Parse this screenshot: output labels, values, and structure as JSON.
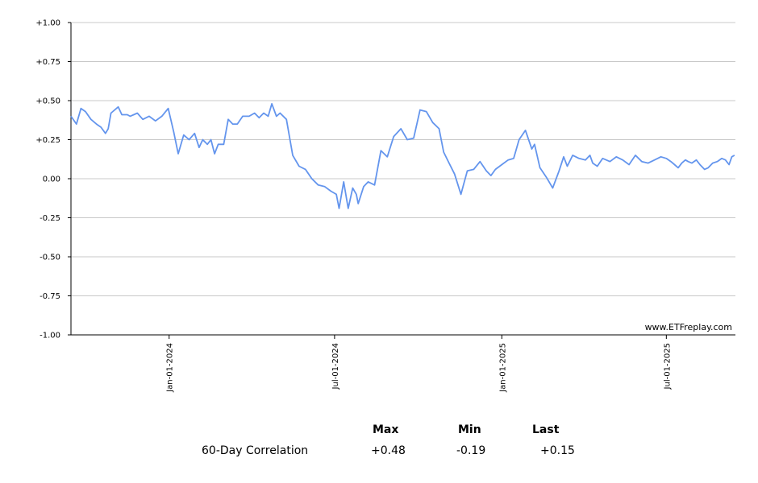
{
  "chart_data": {
    "type": "line",
    "ylim": [
      -1.0,
      1.0
    ],
    "y_ticks": [
      "+1.00",
      "+0.75",
      "+0.50",
      "+0.25",
      "0.00",
      "-0.25",
      "-0.50",
      "-0.75",
      "-1.00"
    ],
    "y_tick_values": [
      1.0,
      0.75,
      0.5,
      0.25,
      0.0,
      -0.25,
      -0.5,
      -0.75,
      -1.0
    ],
    "x_range": [
      "2023-09-15",
      "2025-09-15"
    ],
    "x_ticks": [
      "Jan-01-2024",
      "Jul-01-2024",
      "Jan-01-2025",
      "Jul-01-2025"
    ],
    "x_tick_dates": [
      "2024-01-01",
      "2024-07-01",
      "2025-01-01",
      "2025-07-01"
    ],
    "grid": "horizontal",
    "line_color": "#6495ED",
    "watermark": "www.ETFreplay.com",
    "series": [
      {
        "x": [
          "2023-09-15",
          "2023-09-21",
          "2023-09-26",
          "2023-10-01",
          "2023-10-07",
          "2023-10-13",
          "2023-10-18",
          "2023-10-23",
          "2023-10-26",
          "2023-10-29",
          "2023-11-06",
          "2023-11-10",
          "2023-11-16",
          "2023-11-19",
          "2023-11-23",
          "2023-11-27",
          "2023-12-03",
          "2023-12-10",
          "2023-12-17",
          "2023-12-24",
          "2023-12-31",
          "2024-01-06",
          "2024-01-11",
          "2024-01-17",
          "2024-01-23",
          "2024-01-29",
          "2024-02-03",
          "2024-02-07",
          "2024-02-12",
          "2024-02-16",
          "2024-02-20",
          "2024-02-24",
          "2024-03-01",
          "2024-03-06",
          "2024-03-11",
          "2024-03-16",
          "2024-03-22",
          "2024-03-29",
          "2024-04-04",
          "2024-04-09",
          "2024-04-14",
          "2024-04-19",
          "2024-04-23",
          "2024-04-28",
          "2024-05-02",
          "2024-05-09",
          "2024-05-16",
          "2024-05-23",
          "2024-05-30",
          "2024-06-06",
          "2024-06-13",
          "2024-06-20",
          "2024-06-27",
          "2024-07-03",
          "2024-07-06",
          "2024-07-11",
          "2024-07-16",
          "2024-07-21",
          "2024-07-25",
          "2024-07-27",
          "2024-08-02",
          "2024-08-07",
          "2024-08-14",
          "2024-08-21",
          "2024-08-28",
          "2024-09-04",
          "2024-09-12",
          "2024-09-19",
          "2024-09-26",
          "2024-10-03",
          "2024-10-10",
          "2024-10-17",
          "2024-10-24",
          "2024-10-29",
          "2024-11-04",
          "2024-11-10",
          "2024-11-17",
          "2024-11-24",
          "2024-12-01",
          "2024-12-08",
          "2024-12-15",
          "2024-12-20",
          "2024-12-25",
          "2025-01-01",
          "2025-01-08",
          "2025-01-14",
          "2025-01-20",
          "2025-01-27",
          "2025-02-03",
          "2025-02-06",
          "2025-02-12",
          "2025-02-19",
          "2025-02-26",
          "2025-03-05",
          "2025-03-10",
          "2025-03-14",
          "2025-03-20",
          "2025-03-27",
          "2025-04-03",
          "2025-04-08",
          "2025-04-11",
          "2025-04-16",
          "2025-04-22",
          "2025-04-30",
          "2025-05-07",
          "2025-05-14",
          "2025-05-21",
          "2025-05-28",
          "2025-06-04",
          "2025-06-11",
          "2025-06-18",
          "2025-06-25",
          "2025-07-01",
          "2025-07-06",
          "2025-07-10",
          "2025-07-14",
          "2025-07-18",
          "2025-07-22",
          "2025-07-25",
          "2025-07-29",
          "2025-08-03",
          "2025-08-07",
          "2025-08-12",
          "2025-08-16",
          "2025-08-21",
          "2025-08-26",
          "2025-08-31",
          "2025-09-04",
          "2025-09-08",
          "2025-09-11",
          "2025-09-14"
        ],
        "y": [
          0.4,
          0.35,
          0.45,
          0.43,
          0.38,
          0.35,
          0.33,
          0.29,
          0.32,
          0.42,
          0.46,
          0.41,
          0.41,
          0.4,
          0.41,
          0.42,
          0.38,
          0.4,
          0.37,
          0.4,
          0.45,
          0.3,
          0.16,
          0.28,
          0.25,
          0.29,
          0.2,
          0.25,
          0.22,
          0.25,
          0.16,
          0.22,
          0.22,
          0.38,
          0.35,
          0.35,
          0.4,
          0.4,
          0.42,
          0.39,
          0.42,
          0.4,
          0.48,
          0.4,
          0.42,
          0.38,
          0.15,
          0.08,
          0.06,
          0.0,
          -0.04,
          -0.05,
          -0.08,
          -0.1,
          -0.19,
          -0.02,
          -0.19,
          -0.06,
          -0.1,
          -0.16,
          -0.05,
          -0.02,
          -0.04,
          0.18,
          0.14,
          0.27,
          0.32,
          0.25,
          0.26,
          0.44,
          0.43,
          0.36,
          0.32,
          0.17,
          0.1,
          0.03,
          -0.1,
          0.05,
          0.06,
          0.11,
          0.05,
          0.02,
          0.06,
          0.09,
          0.12,
          0.13,
          0.25,
          0.31,
          0.19,
          0.22,
          0.07,
          0.01,
          -0.06,
          0.05,
          0.14,
          0.08,
          0.15,
          0.13,
          0.12,
          0.15,
          0.1,
          0.08,
          0.13,
          0.11,
          0.14,
          0.12,
          0.09,
          0.15,
          0.11,
          0.1,
          0.12,
          0.14,
          0.13,
          0.11,
          0.09,
          0.07,
          0.1,
          0.12,
          0.11,
          0.1,
          0.12,
          0.09,
          0.06,
          0.07,
          0.1,
          0.11,
          0.13,
          0.12,
          0.09,
          0.14,
          0.15
        ]
      }
    ]
  },
  "stats": {
    "headers": {
      "max": "Max",
      "min": "Min",
      "last": "Last"
    },
    "row_label": "60-Day Correlation",
    "max": "+0.48",
    "min": "-0.19",
    "last": "+0.15"
  }
}
